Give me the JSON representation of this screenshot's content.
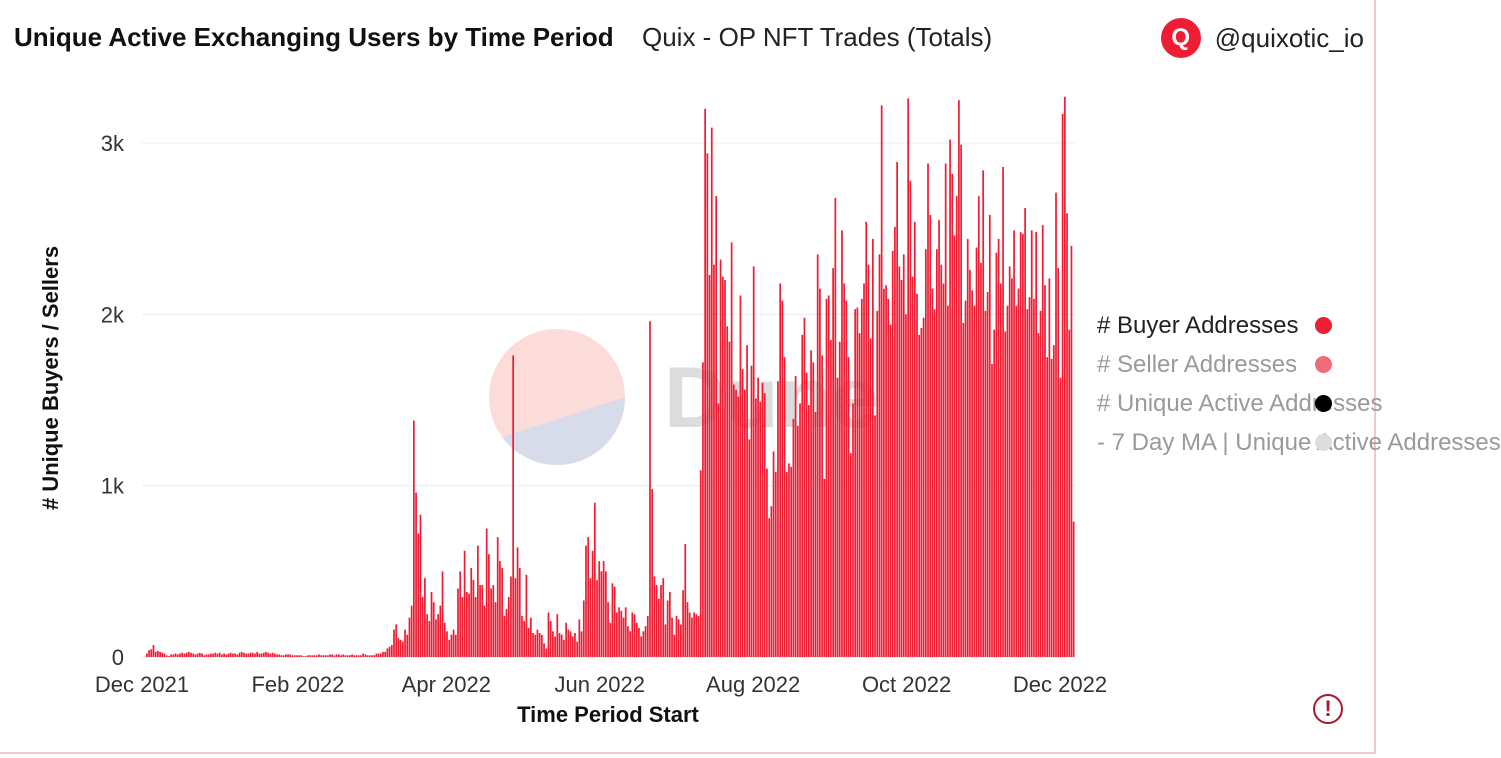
{
  "header": {
    "title": "Unique Active Exchanging Users by Time Period",
    "subtitle": "Quix - OP NFT Trades (Totals)",
    "author_handle": "@quixotic_io",
    "avatar_letter": "Q"
  },
  "watermark": "Dune",
  "alert_symbol": "!",
  "colors": {
    "bar": "#ee1d33",
    "seller": "#f26b78",
    "unique": "#000000",
    "ma": "#dddddd",
    "grid": "#ececec"
  },
  "chart_data": {
    "type": "bar",
    "title": "Unique Active Exchanging Users by Time Period",
    "xlabel": "Time Period Start",
    "ylabel": "# Unique Buyers / Sellers",
    "ylim": [
      0,
      3300
    ],
    "y_ticks": [
      {
        "value": 0,
        "label": "0"
      },
      {
        "value": 1000,
        "label": "1k"
      },
      {
        "value": 2000,
        "label": "2k"
      },
      {
        "value": 3000,
        "label": "3k"
      }
    ],
    "x_ticks": [
      {
        "date": "2021-12-01",
        "label": "Dec 2021"
      },
      {
        "date": "2022-02-01",
        "label": "Feb 2022"
      },
      {
        "date": "2022-04-01",
        "label": "Apr 2022"
      },
      {
        "date": "2022-06-01",
        "label": "Jun 2022"
      },
      {
        "date": "2022-08-01",
        "label": "Aug 2022"
      },
      {
        "date": "2022-10-01",
        "label": "Oct 2022"
      },
      {
        "date": "2022-12-01",
        "label": "Dec 2022"
      }
    ],
    "grid": true,
    "legend_position": "right",
    "series": [
      {
        "name": "# Buyer Addresses",
        "color": "#ee1d33",
        "visible": true
      },
      {
        "name": "# Seller Addresses",
        "color": "#f26b78",
        "visible": false
      },
      {
        "name": "# Unique Active Addresses",
        "color": "#000000",
        "visible": false
      },
      {
        "name": "- 7 Day MA | Unique Active Addresses",
        "color": "#dddddd",
        "visible": false
      }
    ],
    "x_start": "2021-12-01",
    "values": [
      20,
      40,
      45,
      70,
      30,
      35,
      30,
      25,
      20,
      10,
      5,
      15,
      15,
      20,
      15,
      20,
      25,
      20,
      25,
      30,
      25,
      20,
      15,
      20,
      25,
      20,
      10,
      15,
      15,
      20,
      20,
      25,
      20,
      25,
      15,
      20,
      15,
      20,
      25,
      20,
      20,
      15,
      25,
      30,
      25,
      20,
      20,
      25,
      25,
      20,
      30,
      20,
      20,
      25,
      30,
      25,
      20,
      25,
      20,
      15,
      15,
      10,
      10,
      15,
      15,
      15,
      10,
      10,
      10,
      10,
      10,
      5,
      5,
      10,
      10,
      10,
      10,
      10,
      15,
      10,
      10,
      10,
      10,
      15,
      15,
      10,
      15,
      15,
      10,
      15,
      10,
      10,
      10,
      15,
      10,
      10,
      10,
      10,
      20,
      15,
      10,
      10,
      10,
      10,
      20,
      20,
      20,
      30,
      30,
      50,
      60,
      70,
      160,
      190,
      110,
      100,
      90,
      160,
      130,
      230,
      300,
      1380,
      960,
      720,
      830,
      350,
      460,
      250,
      210,
      380,
      320,
      220,
      250,
      300,
      500,
      200,
      150,
      100,
      130,
      160,
      130,
      400,
      500,
      350,
      620,
      380,
      370,
      520,
      450,
      350,
      650,
      420,
      420,
      300,
      750,
      600,
      400,
      420,
      320,
      700,
      560,
      520,
      240,
      280,
      350,
      470,
      1760,
      460,
      640,
      520,
      240,
      210,
      480,
      170,
      230,
      140,
      130,
      160,
      140,
      130,
      80,
      50,
      260,
      210,
      150,
      120,
      250,
      140,
      130,
      100,
      200,
      160,
      150,
      120,
      140,
      90,
      220,
      150,
      330,
      650,
      700,
      460,
      620,
      900,
      450,
      560,
      500,
      560,
      500,
      320,
      200,
      430,
      410,
      260,
      290,
      270,
      230,
      290,
      180,
      150,
      260,
      250,
      200,
      170,
      120,
      150,
      180,
      240,
      1960,
      980,
      470,
      420,
      340,
      420,
      460,
      190,
      330,
      380,
      230,
      130,
      240,
      220,
      190,
      390,
      660,
      320,
      260,
      230,
      260,
      250,
      240,
      1090,
      1720,
      3200,
      2940,
      2230,
      3090,
      2290,
      2690,
      1480,
      2320,
      2220,
      2200,
      1930,
      1840,
      2420,
      1590,
      1560,
      1520,
      2110,
      1680,
      1560,
      1820,
      1270,
      1700,
      2280,
      1510,
      1630,
      1490,
      1600,
      1540,
      1100,
      810,
      880,
      1200,
      1080,
      1610,
      2180,
      2080,
      1750,
      1080,
      1130,
      1110,
      1390,
      1640,
      1350,
      1480,
      1880,
      1980,
      1660,
      1470,
      1790,
      1720,
      1430,
      2350,
      2150,
      1760,
      1040,
      2090,
      2110,
      1850,
      2270,
      2680,
      1630,
      1840,
      2490,
      2180,
      2080,
      1750,
      1190,
      1480,
      2030,
      2040,
      1890,
      2090,
      2180,
      2540,
      2290,
      1860,
      2440,
      1410,
      2020,
      2350,
      3220,
      2150,
      2170,
      2090,
      1940,
      2370,
      2510,
      2890,
      2280,
      2200,
      2350,
      2000,
      3260,
      2780,
      2220,
      2540,
      2120,
      1880,
      1920,
      1980,
      2380,
      2880,
      2580,
      2150,
      2030,
      2380,
      2550,
      2290,
      2180,
      2880,
      2050,
      3020,
      2820,
      2460,
      2690,
      3250,
      2990,
      1950,
      2080,
      2440,
      2260,
      2140,
      2050,
      2390,
      2690,
      2300,
      2840,
      2020,
      2130,
      2580,
      1710,
      1910,
      2360,
      2440,
      2180,
      2860,
      1900,
      2050,
      2280,
      2210,
      2490,
      2050,
      2150,
      2480,
      2470,
      2620,
      2030,
      2100,
      2490,
      2090,
      2480,
      1890,
      2020,
      2520,
      2170,
      1750,
      2210,
      1740,
      1820,
      2710,
      2270,
      1630,
      3170,
      3270,
      2590,
      1910,
      2400,
      790
    ]
  }
}
